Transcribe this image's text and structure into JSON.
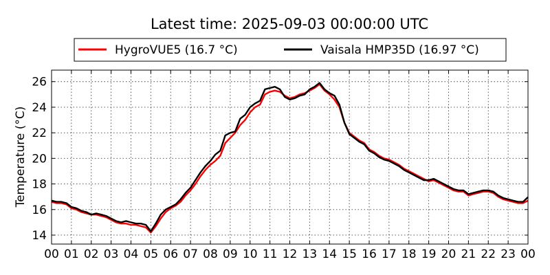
{
  "chart_data": {
    "type": "line",
    "title": "Latest time: 2025-09-03 00:00:00 UTC",
    "xlabel": "",
    "ylabel": "Temperature (°C)",
    "xlim": [
      0,
      24
    ],
    "ylim": [
      13.3,
      26.9
    ],
    "x_ticks": [
      0,
      1,
      2,
      3,
      4,
      5,
      6,
      7,
      8,
      9,
      10,
      11,
      12,
      13,
      14,
      15,
      16,
      17,
      18,
      19,
      20,
      21,
      22,
      23,
      24
    ],
    "x_tick_labels": [
      "00",
      "01",
      "02",
      "03",
      "04",
      "05",
      "06",
      "07",
      "08",
      "09",
      "10",
      "11",
      "12",
      "13",
      "14",
      "15",
      "16",
      "17",
      "18",
      "19",
      "20",
      "21",
      "22",
      "23",
      "00"
    ],
    "y_ticks": [
      14,
      16,
      18,
      20,
      22,
      24,
      26
    ],
    "y_tick_labels": [
      "14",
      "16",
      "18",
      "20",
      "22",
      "24",
      "26"
    ],
    "grid": true,
    "legend_position": "top",
    "series": [
      {
        "name": "HygroVUE5 (16.7 °C)",
        "color": "#ff0000",
        "points": [
          [
            0.0,
            16.6
          ],
          [
            0.25,
            16.5
          ],
          [
            0.5,
            16.5
          ],
          [
            0.75,
            16.4
          ],
          [
            1.0,
            16.1
          ],
          [
            1.25,
            16.0
          ],
          [
            1.5,
            15.8
          ],
          [
            1.75,
            15.7
          ],
          [
            2.0,
            15.6
          ],
          [
            2.25,
            15.6
          ],
          [
            2.5,
            15.5
          ],
          [
            2.75,
            15.4
          ],
          [
            3.0,
            15.2
          ],
          [
            3.25,
            15.0
          ],
          [
            3.5,
            14.9
          ],
          [
            3.75,
            14.9
          ],
          [
            4.0,
            14.8
          ],
          [
            4.25,
            14.8
          ],
          [
            4.5,
            14.7
          ],
          [
            4.75,
            14.6
          ],
          [
            5.0,
            14.2
          ],
          [
            5.25,
            14.7
          ],
          [
            5.5,
            15.3
          ],
          [
            5.75,
            15.8
          ],
          [
            6.0,
            16.1
          ],
          [
            6.25,
            16.3
          ],
          [
            6.5,
            16.6
          ],
          [
            6.75,
            17.1
          ],
          [
            7.0,
            17.5
          ],
          [
            7.25,
            18.0
          ],
          [
            7.5,
            18.6
          ],
          [
            7.75,
            19.1
          ],
          [
            8.0,
            19.5
          ],
          [
            8.25,
            19.8
          ],
          [
            8.5,
            20.2
          ],
          [
            8.75,
            21.2
          ],
          [
            9.0,
            21.6
          ],
          [
            9.25,
            22.0
          ],
          [
            9.5,
            22.6
          ],
          [
            9.75,
            23.0
          ],
          [
            10.0,
            23.6
          ],
          [
            10.25,
            24.0
          ],
          [
            10.5,
            24.2
          ],
          [
            10.75,
            25.0
          ],
          [
            11.0,
            25.2
          ],
          [
            11.25,
            25.3
          ],
          [
            11.5,
            25.2
          ],
          [
            11.75,
            24.9
          ],
          [
            12.0,
            24.7
          ],
          [
            12.25,
            24.8
          ],
          [
            12.5,
            25.0
          ],
          [
            12.75,
            25.1
          ],
          [
            13.0,
            25.3
          ],
          [
            13.25,
            25.5
          ],
          [
            13.5,
            25.8
          ],
          [
            13.75,
            25.3
          ],
          [
            14.0,
            25.0
          ],
          [
            14.25,
            24.6
          ],
          [
            14.5,
            24.0
          ],
          [
            14.75,
            22.8
          ],
          [
            15.0,
            22.0
          ],
          [
            15.25,
            21.7
          ],
          [
            15.5,
            21.4
          ],
          [
            15.75,
            21.2
          ],
          [
            16.0,
            20.7
          ],
          [
            16.25,
            20.5
          ],
          [
            16.5,
            20.2
          ],
          [
            16.75,
            20.0
          ],
          [
            17.0,
            19.9
          ],
          [
            17.25,
            19.7
          ],
          [
            17.5,
            19.5
          ],
          [
            17.75,
            19.2
          ],
          [
            18.0,
            19.0
          ],
          [
            18.25,
            18.8
          ],
          [
            18.5,
            18.6
          ],
          [
            18.75,
            18.4
          ],
          [
            19.0,
            18.2
          ],
          [
            19.25,
            18.3
          ],
          [
            19.5,
            18.1
          ],
          [
            19.75,
            17.9
          ],
          [
            20.0,
            17.7
          ],
          [
            20.25,
            17.5
          ],
          [
            20.5,
            17.4
          ],
          [
            20.75,
            17.4
          ],
          [
            21.0,
            17.1
          ],
          [
            21.25,
            17.2
          ],
          [
            21.5,
            17.3
          ],
          [
            21.75,
            17.4
          ],
          [
            22.0,
            17.4
          ],
          [
            22.25,
            17.3
          ],
          [
            22.5,
            17.0
          ],
          [
            22.75,
            16.8
          ],
          [
            23.0,
            16.7
          ],
          [
            23.25,
            16.6
          ],
          [
            23.5,
            16.5
          ],
          [
            23.75,
            16.5
          ],
          [
            24.0,
            16.7
          ]
        ]
      },
      {
        "name": "Vaisala HMP35D (16.97 °C)",
        "color": "#000000",
        "points": [
          [
            0.0,
            16.7
          ],
          [
            0.25,
            16.6
          ],
          [
            0.5,
            16.6
          ],
          [
            0.75,
            16.5
          ],
          [
            1.0,
            16.2
          ],
          [
            1.25,
            16.1
          ],
          [
            1.5,
            15.9
          ],
          [
            1.75,
            15.8
          ],
          [
            2.0,
            15.6
          ],
          [
            2.25,
            15.7
          ],
          [
            2.5,
            15.6
          ],
          [
            2.75,
            15.5
          ],
          [
            3.0,
            15.3
          ],
          [
            3.25,
            15.1
          ],
          [
            3.5,
            15.0
          ],
          [
            3.75,
            15.1
          ],
          [
            4.0,
            15.0
          ],
          [
            4.25,
            14.9
          ],
          [
            4.5,
            14.9
          ],
          [
            4.75,
            14.8
          ],
          [
            5.0,
            14.3
          ],
          [
            5.25,
            14.9
          ],
          [
            5.5,
            15.6
          ],
          [
            5.75,
            16.0
          ],
          [
            6.0,
            16.2
          ],
          [
            6.25,
            16.4
          ],
          [
            6.5,
            16.8
          ],
          [
            6.75,
            17.3
          ],
          [
            7.0,
            17.7
          ],
          [
            7.25,
            18.3
          ],
          [
            7.5,
            18.9
          ],
          [
            7.75,
            19.4
          ],
          [
            8.0,
            19.8
          ],
          [
            8.25,
            20.3
          ],
          [
            8.5,
            20.6
          ],
          [
            8.75,
            21.8
          ],
          [
            9.0,
            22.0
          ],
          [
            9.25,
            22.1
          ],
          [
            9.5,
            23.1
          ],
          [
            9.75,
            23.4
          ],
          [
            10.0,
            24.0
          ],
          [
            10.25,
            24.3
          ],
          [
            10.5,
            24.5
          ],
          [
            10.75,
            25.4
          ],
          [
            11.0,
            25.5
          ],
          [
            11.25,
            25.6
          ],
          [
            11.5,
            25.4
          ],
          [
            11.75,
            24.8
          ],
          [
            12.0,
            24.6
          ],
          [
            12.25,
            24.7
          ],
          [
            12.5,
            24.9
          ],
          [
            12.75,
            25.0
          ],
          [
            13.0,
            25.4
          ],
          [
            13.25,
            25.6
          ],
          [
            13.5,
            25.9
          ],
          [
            13.75,
            25.4
          ],
          [
            14.0,
            25.1
          ],
          [
            14.25,
            24.9
          ],
          [
            14.5,
            24.2
          ],
          [
            14.75,
            22.8
          ],
          [
            15.0,
            21.9
          ],
          [
            15.25,
            21.6
          ],
          [
            15.5,
            21.3
          ],
          [
            15.75,
            21.1
          ],
          [
            16.0,
            20.6
          ],
          [
            16.25,
            20.4
          ],
          [
            16.5,
            20.1
          ],
          [
            16.75,
            19.9
          ],
          [
            17.0,
            19.8
          ],
          [
            17.25,
            19.6
          ],
          [
            17.5,
            19.4
          ],
          [
            17.75,
            19.1
          ],
          [
            18.0,
            18.9
          ],
          [
            18.25,
            18.7
          ],
          [
            18.5,
            18.5
          ],
          [
            18.75,
            18.3
          ],
          [
            19.0,
            18.3
          ],
          [
            19.25,
            18.4
          ],
          [
            19.5,
            18.2
          ],
          [
            19.75,
            18.0
          ],
          [
            20.0,
            17.8
          ],
          [
            20.25,
            17.6
          ],
          [
            20.5,
            17.5
          ],
          [
            20.75,
            17.5
          ],
          [
            21.0,
            17.2
          ],
          [
            21.25,
            17.3
          ],
          [
            21.5,
            17.4
          ],
          [
            21.75,
            17.5
          ],
          [
            22.0,
            17.5
          ],
          [
            22.25,
            17.4
          ],
          [
            22.5,
            17.1
          ],
          [
            22.75,
            16.9
          ],
          [
            23.0,
            16.8
          ],
          [
            23.25,
            16.7
          ],
          [
            23.5,
            16.6
          ],
          [
            23.75,
            16.6
          ],
          [
            24.0,
            16.97
          ]
        ]
      }
    ]
  }
}
